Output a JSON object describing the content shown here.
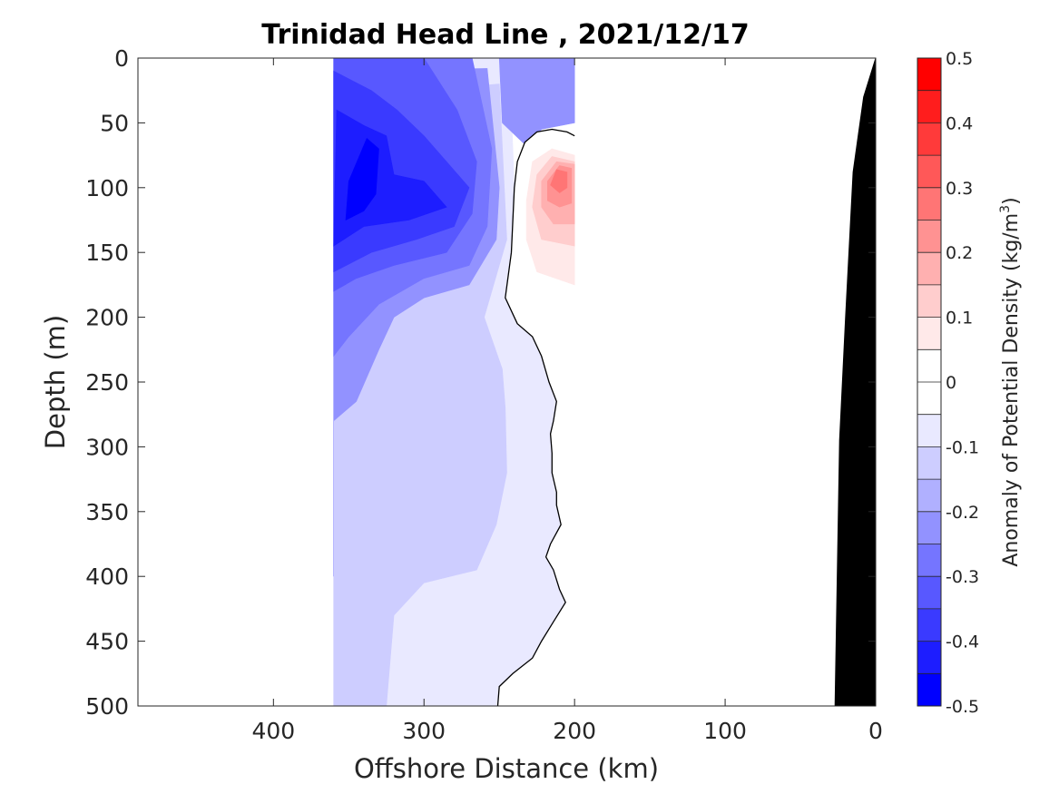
{
  "chart_data": {
    "type": "contourf",
    "title": "Trinidad Head Line , 2021/12/17",
    "xlabel": "Offshore Distance (km)",
    "ylabel": "Depth (m)",
    "xlim": [
      490,
      0
    ],
    "ylim": [
      0,
      500
    ],
    "y_reversed": true,
    "xticks": [
      400,
      300,
      200,
      100,
      0
    ],
    "xtick_labels": [
      "400",
      "300",
      "200",
      "100",
      "0"
    ],
    "yticks": [
      0,
      50,
      100,
      150,
      200,
      250,
      300,
      350,
      400,
      450,
      500
    ],
    "ytick_labels": [
      "0",
      "50",
      "100",
      "150",
      "200",
      "250",
      "300",
      "350",
      "400",
      "450",
      "500"
    ],
    "data_extent_km": [
      360,
      200
    ],
    "colorbar": {
      "label_prefix": "Anomaly of Potential Density (kg/m",
      "label_sup": "3",
      "label_suffix": ")",
      "range": [
        -0.5,
        0.5
      ],
      "ticks": [
        0.5,
        0.4,
        0.3,
        0.2,
        0.1,
        0,
        -0.1,
        -0.2,
        -0.3,
        -0.4,
        -0.5
      ],
      "tick_labels": [
        "0.5",
        "0.4",
        "0.3",
        "0.2",
        "0.1",
        "0",
        "-0.1",
        "-0.2",
        "-0.3",
        "-0.4",
        "-0.5"
      ],
      "levels_top_to_bottom": [
        "#ff0000",
        "#ff1d1d",
        "#ff3a3a",
        "#ff5858",
        "#ff7575",
        "#ff9292",
        "#ffb0b0",
        "#ffcdcd",
        "#ffe9e9",
        "#ffffff",
        "#ffffff",
        "#e9e9ff",
        "#cdcdff",
        "#b0b0ff",
        "#9292ff",
        "#7575ff",
        "#5858ff",
        "#3a3aff",
        "#1d1dff",
        "#0000ff"
      ]
    },
    "zero_contour": [
      [
        200,
        60
      ],
      [
        205,
        57
      ],
      [
        215,
        55
      ],
      [
        225,
        57
      ],
      [
        233,
        65
      ],
      [
        238,
        80
      ],
      [
        240,
        100
      ],
      [
        242,
        150
      ],
      [
        246,
        185
      ],
      [
        238,
        205
      ],
      [
        228,
        215
      ],
      [
        222,
        230
      ],
      [
        217,
        250
      ],
      [
        212,
        265
      ],
      [
        214,
        280
      ],
      [
        216,
        290
      ],
      [
        215,
        305
      ],
      [
        215,
        320
      ],
      [
        212,
        335
      ],
      [
        212,
        345
      ],
      [
        209,
        360
      ],
      [
        216,
        375
      ],
      [
        219,
        385
      ],
      [
        214,
        395
      ],
      [
        210,
        410
      ],
      [
        206,
        420
      ],
      [
        214,
        435
      ],
      [
        222,
        450
      ],
      [
        228,
        463
      ],
      [
        241,
        475
      ],
      [
        250,
        485
      ],
      [
        251,
        500
      ]
    ],
    "anomaly_regions": [
      {
        "sign": "negative",
        "level": -0.05,
        "polygon": [
          [
            360,
            0
          ],
          [
            247,
            0
          ],
          [
            242,
            40
          ],
          [
            240,
            100
          ],
          [
            242,
            150
          ],
          [
            246,
            185
          ],
          [
            238,
            205
          ],
          [
            228,
            215
          ],
          [
            222,
            230
          ],
          [
            217,
            250
          ],
          [
            212,
            265
          ],
          [
            214,
            280
          ],
          [
            216,
            290
          ],
          [
            215,
            305
          ],
          [
            215,
            320
          ],
          [
            212,
            335
          ],
          [
            212,
            345
          ],
          [
            209,
            360
          ],
          [
            216,
            375
          ],
          [
            219,
            385
          ],
          [
            214,
            395
          ],
          [
            210,
            410
          ],
          [
            206,
            420
          ],
          [
            214,
            435
          ],
          [
            222,
            450
          ],
          [
            228,
            463
          ],
          [
            241,
            475
          ],
          [
            250,
            485
          ],
          [
            251,
            500
          ],
          [
            360,
            500
          ]
        ]
      },
      {
        "sign": "negative",
        "level": -0.1,
        "polygon": [
          [
            360,
            500
          ],
          [
            360,
            30
          ],
          [
            250,
            20
          ],
          [
            245,
            140
          ],
          [
            255,
            180
          ],
          [
            260,
            200
          ],
          [
            248,
            240
          ],
          [
            246,
            270
          ],
          [
            245,
            320
          ],
          [
            252,
            360
          ],
          [
            265,
            395
          ],
          [
            300,
            405
          ],
          [
            320,
            430
          ],
          [
            325,
            500
          ]
        ]
      },
      {
        "sign": "negative",
        "level": -0.2,
        "polygon": [
          [
            360,
            400
          ],
          [
            360,
            10
          ],
          [
            258,
            8
          ],
          [
            250,
            100
          ],
          [
            252,
            140
          ],
          [
            270,
            175
          ],
          [
            300,
            185
          ],
          [
            320,
            200
          ],
          [
            330,
            225
          ],
          [
            345,
            265
          ],
          [
            360,
            280
          ]
        ]
      },
      {
        "sign": "negative",
        "level": -0.2,
        "polygon": [
          [
            250,
            0
          ],
          [
            200,
            0
          ],
          [
            200,
            50
          ],
          [
            222,
            55
          ],
          [
            230,
            70
          ],
          [
            248,
            50
          ]
        ]
      },
      {
        "sign": "negative",
        "level": -0.25,
        "polygon": [
          [
            360,
            230
          ],
          [
            360,
            0
          ],
          [
            268,
            0
          ],
          [
            255,
            70
          ],
          [
            258,
            130
          ],
          [
            270,
            160
          ],
          [
            300,
            170
          ],
          [
            330,
            190
          ],
          [
            350,
            215
          ]
        ]
      },
      {
        "sign": "negative",
        "level": -0.3,
        "polygon": [
          [
            360,
            180
          ],
          [
            360,
            0
          ],
          [
            300,
            0
          ],
          [
            278,
            40
          ],
          [
            265,
            80
          ],
          [
            268,
            120
          ],
          [
            285,
            150
          ],
          [
            320,
            160
          ],
          [
            345,
            170
          ]
        ]
      },
      {
        "sign": "negative",
        "level": -0.35,
        "polygon": [
          [
            360,
            165
          ],
          [
            360,
            10
          ],
          [
            335,
            25
          ],
          [
            318,
            40
          ],
          [
            300,
            60
          ],
          [
            285,
            80
          ],
          [
            270,
            100
          ],
          [
            280,
            130
          ],
          [
            305,
            140
          ],
          [
            335,
            150
          ]
        ]
      },
      {
        "sign": "negative",
        "level": -0.4,
        "polygon": [
          [
            360,
            145
          ],
          [
            358,
            40
          ],
          [
            340,
            52
          ],
          [
            325,
            60
          ],
          [
            320,
            90
          ],
          [
            300,
            95
          ],
          [
            285,
            115
          ],
          [
            310,
            125
          ],
          [
            340,
            130
          ]
        ]
      },
      {
        "sign": "negative",
        "level": -0.45,
        "polygon": [
          [
            352,
            125
          ],
          [
            350,
            95
          ],
          [
            338,
            62
          ],
          [
            330,
            70
          ],
          [
            332,
            105
          ],
          [
            340,
            118
          ]
        ]
      },
      {
        "sign": "positive",
        "level": 0.05,
        "polygon": [
          [
            200,
            60
          ],
          [
            205,
            57
          ],
          [
            215,
            55
          ],
          [
            225,
            57
          ],
          [
            233,
            65
          ],
          [
            238,
            80
          ],
          [
            240,
            100
          ],
          [
            242,
            150
          ],
          [
            246,
            185
          ],
          [
            238,
            205
          ],
          [
            220,
            210
          ],
          [
            200,
            207
          ]
        ]
      },
      {
        "sign": "positive",
        "level": 0.1,
        "polygon": [
          [
            200,
            75
          ],
          [
            215,
            70
          ],
          [
            228,
            80
          ],
          [
            232,
            110
          ],
          [
            232,
            140
          ],
          [
            225,
            165
          ],
          [
            200,
            175
          ]
        ]
      },
      {
        "sign": "positive",
        "level": 0.15,
        "polygon": [
          [
            200,
            80
          ],
          [
            215,
            76
          ],
          [
            225,
            90
          ],
          [
            228,
            115
          ],
          [
            222,
            140
          ],
          [
            200,
            145
          ]
        ]
      },
      {
        "sign": "positive",
        "level": 0.2,
        "polygon": [
          [
            200,
            82
          ],
          [
            212,
            80
          ],
          [
            222,
            95
          ],
          [
            222,
            115
          ],
          [
            214,
            128
          ],
          [
            200,
            128
          ]
        ]
      },
      {
        "sign": "positive",
        "level": 0.25,
        "polygon": [
          [
            202,
            85
          ],
          [
            210,
            83
          ],
          [
            218,
            95
          ],
          [
            218,
            110
          ],
          [
            210,
            115
          ],
          [
            202,
            112
          ]
        ]
      },
      {
        "sign": "positive",
        "level": 0.3,
        "polygon": [
          [
            205,
            88
          ],
          [
            212,
            86
          ],
          [
            216,
            98
          ],
          [
            210,
            104
          ],
          [
            205,
            100
          ]
        ]
      }
    ],
    "bathymetry": [
      [
        0,
        0
      ],
      [
        8,
        30
      ],
      [
        15,
        88
      ],
      [
        20,
        200
      ],
      [
        24,
        295
      ],
      [
        27,
        500
      ],
      [
        0,
        500
      ]
    ]
  }
}
